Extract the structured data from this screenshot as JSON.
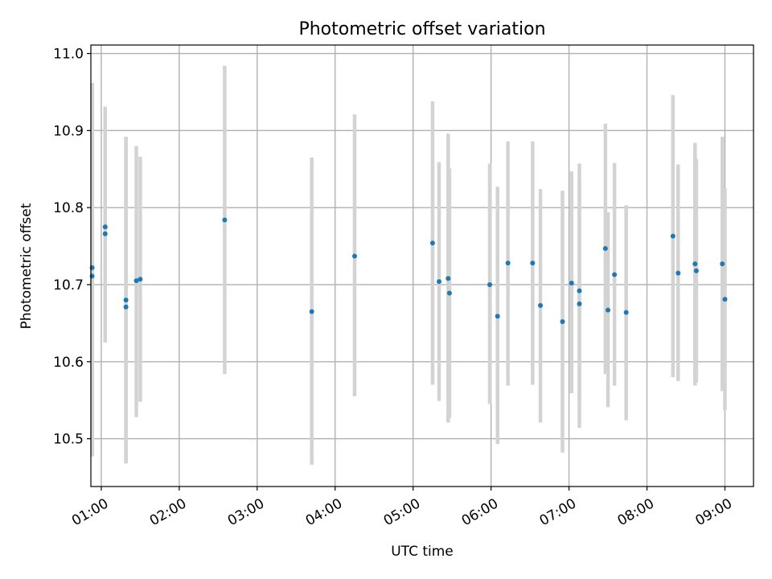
{
  "chart_data": {
    "type": "scatter",
    "title": "Photometric offset variation",
    "xlabel": "UTC time",
    "ylabel": "Photometric offset",
    "xlim": [
      "00:52",
      "09:22"
    ],
    "ylim": [
      10.438,
      11.011
    ],
    "grid": true,
    "x_ticks": [
      "01:00",
      "02:00",
      "03:00",
      "04:00",
      "05:00",
      "06:00",
      "07:00",
      "08:00",
      "09:00"
    ],
    "y_ticks": [
      10.5,
      10.6,
      10.7,
      10.8,
      10.9,
      11.0
    ],
    "y_tick_labels": [
      "10.5",
      "10.6",
      "10.7",
      "10.8",
      "10.9",
      "11.0"
    ],
    "colors": {
      "points": "#1f77b4",
      "error_bars": "#d3d3d3",
      "grid": "#b0b0b0"
    },
    "points": [
      {
        "time": "00:53",
        "y": 10.722,
        "low": 10.477,
        "high": 10.962
      },
      {
        "time": "00:53",
        "y": 10.711,
        "low": 10.48,
        "high": 10.962
      },
      {
        "time": "01:03",
        "y": 10.775,
        "low": 10.625,
        "high": 10.931
      },
      {
        "time": "01:03",
        "y": 10.766,
        "low": 10.625,
        "high": 10.928
      },
      {
        "time": "01:19",
        "y": 10.68,
        "low": 10.468,
        "high": 10.892
      },
      {
        "time": "01:19",
        "y": 10.671,
        "low": 10.468,
        "high": 10.892
      },
      {
        "time": "01:27",
        "y": 10.705,
        "low": 10.528,
        "high": 10.88
      },
      {
        "time": "01:30",
        "y": 10.707,
        "low": 10.548,
        "high": 10.866
      },
      {
        "time": "02:35",
        "y": 10.784,
        "low": 10.584,
        "high": 10.984
      },
      {
        "time": "03:42",
        "y": 10.665,
        "low": 10.466,
        "high": 10.865
      },
      {
        "time": "04:15",
        "y": 10.737,
        "low": 10.555,
        "high": 10.921
      },
      {
        "time": "05:15",
        "y": 10.754,
        "low": 10.57,
        "high": 10.938
      },
      {
        "time": "05:20",
        "y": 10.704,
        "low": 10.549,
        "high": 10.859
      },
      {
        "time": "05:27",
        "y": 10.708,
        "low": 10.521,
        "high": 10.896
      },
      {
        "time": "05:28",
        "y": 10.689,
        "low": 10.527,
        "high": 10.851
      },
      {
        "time": "05:59",
        "y": 10.7,
        "low": 10.545,
        "high": 10.857
      },
      {
        "time": "06:05",
        "y": 10.659,
        "low": 10.493,
        "high": 10.827
      },
      {
        "time": "06:13",
        "y": 10.728,
        "low": 10.569,
        "high": 10.886
      },
      {
        "time": "06:32",
        "y": 10.728,
        "low": 10.57,
        "high": 10.886
      },
      {
        "time": "06:38",
        "y": 10.673,
        "low": 10.521,
        "high": 10.824
      },
      {
        "time": "06:55",
        "y": 10.652,
        "low": 10.482,
        "high": 10.822
      },
      {
        "time": "07:02",
        "y": 10.702,
        "low": 10.559,
        "high": 10.847
      },
      {
        "time": "07:08",
        "y": 10.692,
        "low": 10.548,
        "high": 10.836
      },
      {
        "time": "07:08",
        "y": 10.675,
        "low": 10.514,
        "high": 10.857
      },
      {
        "time": "07:28",
        "y": 10.747,
        "low": 10.584,
        "high": 10.909
      },
      {
        "time": "07:30",
        "y": 10.667,
        "low": 10.541,
        "high": 10.794
      },
      {
        "time": "07:35",
        "y": 10.713,
        "low": 10.569,
        "high": 10.858
      },
      {
        "time": "07:44",
        "y": 10.664,
        "low": 10.524,
        "high": 10.803
      },
      {
        "time": "08:20",
        "y": 10.763,
        "low": 10.58,
        "high": 10.946
      },
      {
        "time": "08:24",
        "y": 10.715,
        "low": 10.575,
        "high": 10.856
      },
      {
        "time": "08:37",
        "y": 10.727,
        "low": 10.569,
        "high": 10.884
      },
      {
        "time": "08:38",
        "y": 10.718,
        "low": 10.573,
        "high": 10.863
      },
      {
        "time": "08:58",
        "y": 10.727,
        "low": 10.562,
        "high": 10.892
      },
      {
        "time": "09:00",
        "y": 10.681,
        "low": 10.537,
        "high": 10.825
      }
    ]
  }
}
